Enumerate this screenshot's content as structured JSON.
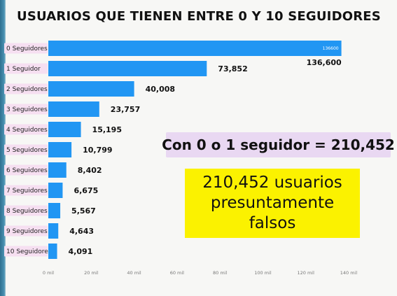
{
  "chart_data": {
    "type": "bar",
    "orientation": "horizontal",
    "title": "USUARIOS QUE TIENEN ENTRE 0 Y 10 SEGUIDORES",
    "categories": [
      "0 Seguidores",
      "1 Seguidor",
      "2 Seguidores",
      "3 Seguidores",
      "4 Seguidores",
      "5 Seguidores",
      "6 Seguidores",
      "7 Seguidores",
      "8 Seguidores",
      "9 Seguidores",
      "10 Seguidores"
    ],
    "values": [
      136600,
      73852,
      40008,
      23757,
      15195,
      10799,
      8402,
      6675,
      5567,
      4643,
      4091
    ],
    "data_labels": [
      "136,600",
      "73,852",
      "40,008",
      "23,757",
      "15,195",
      "10,799",
      "8,402",
      "6,675",
      "5,567",
      "4,643",
      "4,091"
    ],
    "first_bar_inner_label": "136600",
    "xlim": [
      0,
      140000
    ],
    "xticks": [
      0,
      20000,
      40000,
      60000,
      80000,
      100000,
      120000,
      140000
    ],
    "xtick_labels": [
      "0 mil",
      "20 mil",
      "40 mil",
      "60 mil",
      "80 mil",
      "100 mil",
      "120 mil",
      "140 mil"
    ],
    "xlabel": "",
    "ylabel": "",
    "grid": false,
    "bar_color": "#2196f3",
    "category_label_bg": "#f6dff1"
  },
  "callout": {
    "text": "Con 0 o 1 seguidor = 210,452",
    "background": "#e9d8f2"
  },
  "note": {
    "lines": [
      "210,452 usuarios",
      "presuntamente",
      "falsos"
    ],
    "background": "#fbf200"
  }
}
